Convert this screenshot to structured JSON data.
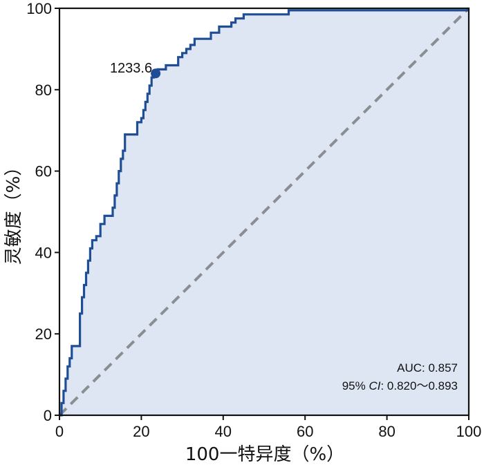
{
  "chart_data": {
    "type": "line",
    "xlabel": "100一特异度（%）",
    "ylabel": "灵敏度（%）",
    "xlim": [
      0,
      100
    ],
    "ylim": [
      0,
      100
    ],
    "xticks": [
      "0",
      "20",
      "40",
      "60",
      "80",
      "100"
    ],
    "yticks": [
      "0",
      "20",
      "40",
      "60",
      "80",
      "100"
    ],
    "grid": false,
    "colors": {
      "curve": "#1f4e96",
      "fill": "#dde6f2",
      "reference": "#8a8d92"
    },
    "series": [
      {
        "x": [
          0,
          0.5,
          0.5,
          1.0,
          1.0,
          1.5,
          1.5,
          2.0,
          2.0,
          2.5,
          2.5,
          3.0,
          3.0,
          5.0,
          5.0,
          5.5,
          5.5,
          6.0,
          6.0,
          6.5,
          6.5,
          7.0,
          7.0,
          7.5,
          7.5,
          8.0,
          8.0,
          9.0,
          9.0,
          10.0,
          10.0,
          11.0,
          11.0,
          13.0,
          13.0,
          13.5,
          13.5,
          14.0,
          14.0,
          14.5,
          14.5,
          15.0,
          15.0,
          15.5,
          15.5,
          16.0,
          16.0,
          19.0,
          19.0,
          20.0,
          20.0,
          20.5,
          20.5,
          21.0,
          21.0,
          21.5,
          21.5,
          22.0,
          22.0,
          22.5,
          22.5,
          23.0,
          23.0,
          24.0,
          24.0,
          26.0,
          26.0,
          29.0,
          29.0,
          30.0,
          30.0,
          31.0,
          31.0,
          32.0,
          32.0,
          33.0,
          33.0,
          37.0,
          37.0,
          39.0,
          39.0,
          42.0,
          42.0,
          43.0,
          43.0,
          45.0,
          45.0,
          56.0,
          56.0,
          100.0
        ],
        "y": [
          0,
          0,
          3,
          3,
          6,
          6,
          9,
          9,
          12,
          12,
          14,
          14,
          17,
          17,
          25,
          25,
          29,
          29,
          32,
          32,
          35,
          35,
          38,
          38,
          41,
          41,
          43,
          43,
          44,
          44,
          47,
          47,
          49,
          49,
          51,
          51,
          54,
          54,
          57,
          57,
          60,
          60,
          63,
          63,
          65,
          65,
          69,
          69,
          72,
          72,
          73,
          73,
          75,
          75,
          77,
          77,
          79,
          79,
          81,
          81,
          83,
          83,
          84,
          84,
          85,
          85,
          86,
          86,
          88,
          88,
          89,
          89,
          90,
          90,
          91,
          91,
          92.5,
          92.5,
          94,
          94,
          95.5,
          95.5,
          96.5,
          96.5,
          97.5,
          97.5,
          98.5,
          98.5,
          99.5,
          99.5
        ]
      }
    ],
    "reference_line": {
      "x": [
        0,
        100
      ],
      "y": [
        0,
        100
      ]
    },
    "cutoff": {
      "label": "1233.6",
      "x": 23.5,
      "y": 84
    },
    "annotations": [
      "AUC: 0.857"
    ],
    "ci": {
      "prefix": "95% ",
      "italic": "CI",
      "suffix": ": 0.820～0.893"
    }
  }
}
